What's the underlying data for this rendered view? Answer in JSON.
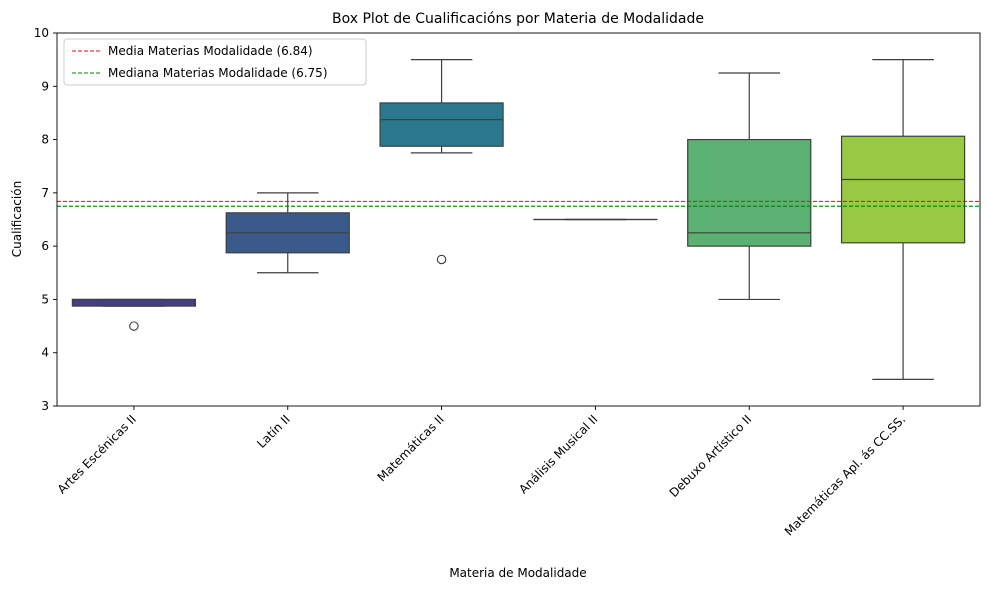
{
  "chart_data": {
    "type": "box",
    "title": "Box Plot de Cualificacións por Materia de Modalidade",
    "xlabel": "Materia de Modalidade",
    "ylabel": "Cualificación",
    "ylim": [
      3,
      10
    ],
    "yticks": [
      3,
      4,
      5,
      6,
      7,
      8,
      9,
      10
    ],
    "grid": false,
    "legend_position": "top-left",
    "categories": [
      "Artes Escénicas II",
      "Latín II",
      "Matemáticas II",
      "Análisis Musical II",
      "Debuxo Artístico II",
      "Matemáticas Apl. ás CC.SS."
    ],
    "boxes": [
      {
        "color": "#433e85",
        "whisker_low": 4.875,
        "q1": 4.875,
        "median": 5.0,
        "q3": 5.0,
        "whisker_high": 5.0,
        "outliers": [
          4.5
        ]
      },
      {
        "color": "#3b5a8c",
        "whisker_low": 5.5,
        "q1": 5.875,
        "median": 6.25,
        "q3": 6.625,
        "whisker_high": 7.0,
        "outliers": []
      },
      {
        "color": "#2a788e",
        "whisker_low": 7.75,
        "q1": 7.875,
        "median": 8.375,
        "q3": 8.6875,
        "whisker_high": 9.5,
        "outliers": [
          5.75
        ]
      },
      {
        "color": "#21918c",
        "whisker_low": 6.5,
        "q1": 6.5,
        "median": 6.5,
        "q3": 6.5,
        "whisker_high": 6.5,
        "outliers": []
      },
      {
        "color": "#5ab172",
        "whisker_low": 5.0,
        "q1": 6.0,
        "median": 6.25,
        "q3": 8.0,
        "whisker_high": 9.25,
        "outliers": []
      },
      {
        "color": "#97c943",
        "whisker_low": 3.5,
        "q1": 6.0625,
        "median": 7.25,
        "q3": 8.0625,
        "whisker_high": 9.5,
        "outliers": []
      }
    ],
    "reference_lines": [
      {
        "label": "Media Materias Modalidade (6.84)",
        "value": 6.84,
        "color": "#ff0000"
      },
      {
        "label": "Mediana Materias Modalidade (6.75)",
        "value": 6.75,
        "color": "#008000"
      }
    ]
  }
}
